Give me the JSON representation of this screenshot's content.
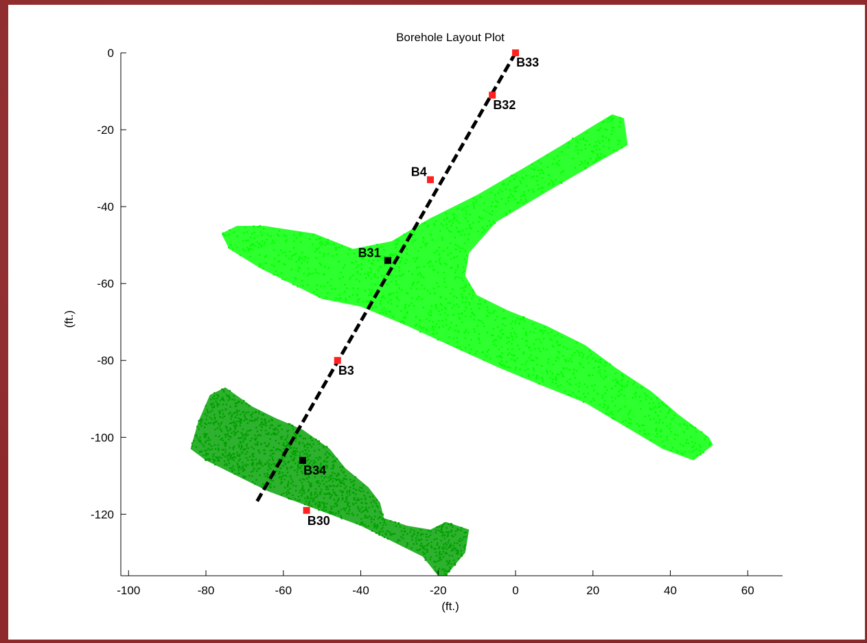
{
  "chart_data": {
    "type": "scatter",
    "title": "Borehole Layout Plot",
    "xlabel": "(ft.)",
    "ylabel": "(ft.)",
    "xlim": [
      -102,
      69
    ],
    "ylim": [
      -136,
      0
    ],
    "xticks": [
      -100,
      -80,
      -60,
      -40,
      -20,
      0,
      20,
      40,
      60
    ],
    "yticks": [
      0,
      -20,
      -40,
      -60,
      -80,
      -100,
      -120
    ],
    "grid": false,
    "series": [
      {
        "kind": "point-cloud",
        "color": "#00ff00",
        "regions": [
          {
            "outline": [
              [
                -76,
                -47
              ],
              [
                -72,
                -45
              ],
              [
                -65,
                -45
              ],
              [
                -52,
                -47
              ],
              [
                -42,
                -51
              ],
              [
                -32,
                -49
              ],
              [
                -22,
                -43
              ],
              [
                -10,
                -37
              ],
              [
                2,
                -30
              ],
              [
                12,
                -24
              ],
              [
                20,
                -19
              ],
              [
                25,
                -16
              ],
              [
                28,
                -17
              ],
              [
                29,
                -24
              ],
              [
                22,
                -28
              ],
              [
                10,
                -35
              ],
              [
                -5,
                -44
              ],
              [
                -12,
                -52
              ],
              [
                -13,
                -58
              ],
              [
                -10,
                -63
              ],
              [
                -2,
                -67
              ],
              [
                8,
                -71
              ],
              [
                18,
                -76
              ],
              [
                26,
                -82
              ],
              [
                35,
                -88
              ],
              [
                42,
                -94
              ],
              [
                50,
                -100
              ],
              [
                51,
                -102
              ],
              [
                46,
                -106
              ],
              [
                38,
                -103
              ],
              [
                28,
                -97
              ],
              [
                18,
                -91
              ],
              [
                8,
                -87
              ],
              [
                -4,
                -82
              ],
              [
                -15,
                -77
              ],
              [
                -28,
                -71
              ],
              [
                -40,
                -66
              ],
              [
                -50,
                -64
              ],
              [
                -58,
                -60
              ],
              [
                -66,
                -56
              ],
              [
                -74,
                -51
              ]
            ]
          }
        ]
      },
      {
        "kind": "point-cloud",
        "color": "#00a000",
        "regions": [
          {
            "outline": [
              [
                -84,
                -103
              ],
              [
                -82,
                -96
              ],
              [
                -79,
                -89
              ],
              [
                -75,
                -87
              ],
              [
                -68,
                -92
              ],
              [
                -62,
                -95
              ],
              [
                -55,
                -98
              ],
              [
                -48,
                -103
              ],
              [
                -44,
                -108
              ],
              [
                -38,
                -113
              ],
              [
                -35,
                -117
              ],
              [
                -34,
                -121
              ],
              [
                -28,
                -123
              ],
              [
                -22,
                -124
              ],
              [
                -18,
                -122
              ],
              [
                -12,
                -124
              ],
              [
                -13,
                -130
              ],
              [
                -18,
                -136
              ],
              [
                -20,
                -136
              ],
              [
                -24,
                -131
              ],
              [
                -32,
                -127
              ],
              [
                -40,
                -123
              ],
              [
                -48,
                -120
              ],
              [
                -56,
                -117
              ],
              [
                -64,
                -114
              ],
              [
                -72,
                -110
              ],
              [
                -80,
                -106
              ]
            ]
          }
        ]
      }
    ],
    "line": {
      "style": "dashed",
      "color": "#000000",
      "points": [
        [
          0,
          0
        ],
        [
          -67,
          -117
        ]
      ]
    },
    "boreholes": [
      {
        "name": "B33",
        "x": 0,
        "y": 0,
        "color": "#ff2020",
        "label_dx": 0.2,
        "label_dy": -2.5
      },
      {
        "name": "B32",
        "x": -6,
        "y": -11,
        "color": "#ff2020",
        "label_dx": 0.2,
        "label_dy": -2.6
      },
      {
        "name": "B4",
        "x": -22,
        "y": -33,
        "color": "#ff2020",
        "label_dx": -5.0,
        "label_dy": 2.0
      },
      {
        "name": "B31",
        "x": -33,
        "y": -54,
        "color": "#000000",
        "label_dx": -7.7,
        "label_dy": 2.0
      },
      {
        "name": "B3",
        "x": -46,
        "y": -80,
        "color": "#ff2020",
        "label_dx": 0.2,
        "label_dy": -2.6
      },
      {
        "name": "B34",
        "x": -55,
        "y": -106,
        "color": "#000000",
        "label_dx": 0.2,
        "label_dy": -2.6
      },
      {
        "name": "B30",
        "x": -54,
        "y": -119,
        "color": "#ff2020",
        "label_dx": 0.2,
        "label_dy": -2.7
      }
    ]
  }
}
